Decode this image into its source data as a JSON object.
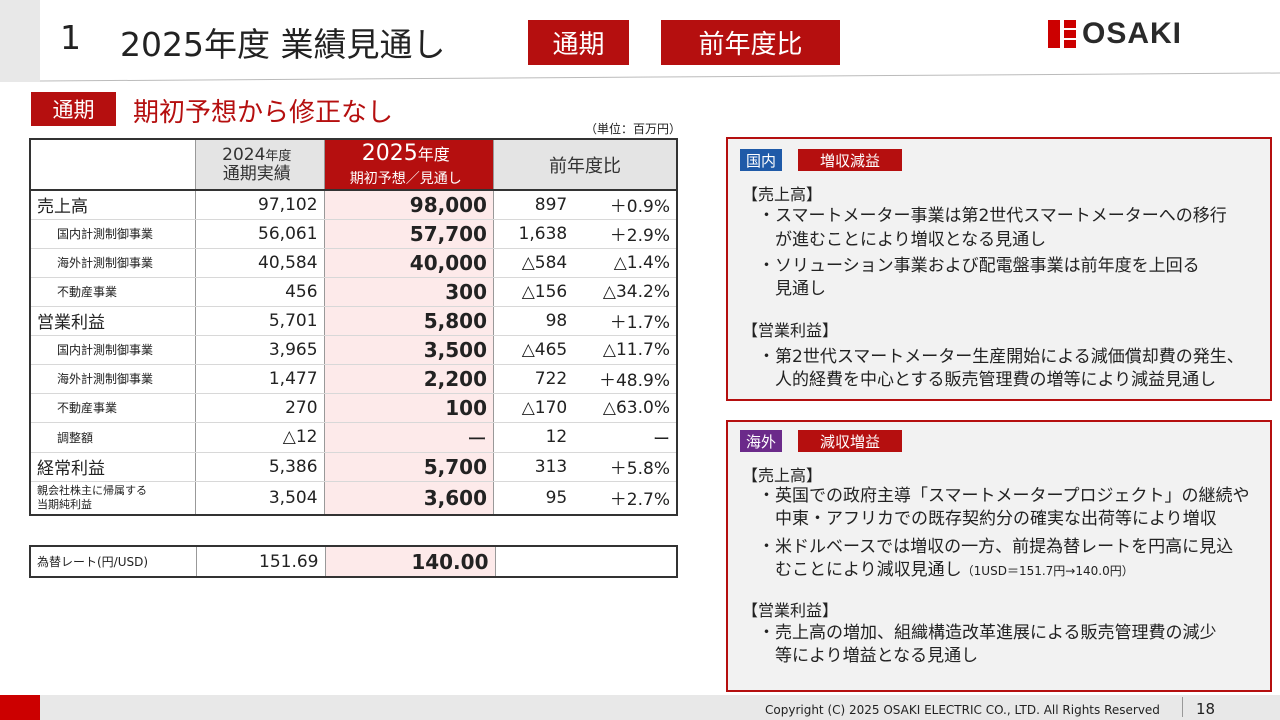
{
  "header": {
    "number": "1",
    "title": "2025年度 業績見通し",
    "badge1": "通期",
    "badge2": "前年度比",
    "logo_text": "OSAKI"
  },
  "section": {
    "badge": "通期",
    "title": "期初予想から修正なし",
    "unit": "（単位：百万円）"
  },
  "table": {
    "col1_line1": "2024",
    "col1_line1b": "年度",
    "col1_line2": "通期実績",
    "col2_line1": "2025",
    "col2_line1b": "年度",
    "col2_line2": "期初予想／見通し",
    "col3": "前年度比",
    "rows": [
      {
        "label": "売上高",
        "v2024": "97,102",
        "v2025": "98,000",
        "diff": "897",
        "pct": "＋0.9%"
      },
      {
        "label": "国内計測制御事業",
        "v2024": "56,061",
        "v2025": "57,700",
        "diff": "1,638",
        "pct": "＋2.9%"
      },
      {
        "label": "海外計測制御事業",
        "v2024": "40,584",
        "v2025": "40,000",
        "diff": "△584",
        "pct": "△1.4%"
      },
      {
        "label": "不動産事業",
        "v2024": "456",
        "v2025": "300",
        "diff": "△156",
        "pct": "△34.2%"
      },
      {
        "label": "営業利益",
        "v2024": "5,701",
        "v2025": "5,800",
        "diff": "98",
        "pct": "＋1.7%"
      },
      {
        "label": "国内計測制御事業",
        "v2024": "3,965",
        "v2025": "3,500",
        "diff": "△465",
        "pct": "△11.7%"
      },
      {
        "label": "海外計測制御事業",
        "v2024": "1,477",
        "v2025": "2,200",
        "diff": "722",
        "pct": "＋48.9%"
      },
      {
        "label": "不動産事業",
        "v2024": "270",
        "v2025": "100",
        "diff": "△170",
        "pct": "△63.0%"
      },
      {
        "label": "調整額",
        "v2024": "△12",
        "v2025": "ー",
        "diff": "12",
        "pct": "ー"
      },
      {
        "label": "経常利益",
        "v2024": "5,386",
        "v2025": "5,700",
        "diff": "313",
        "pct": "＋5.8%"
      },
      {
        "label_line1": "親会社株主に帰属する",
        "label_line2": "当期純利益",
        "v2024": "3,504",
        "v2025": "3,600",
        "diff": "95",
        "pct": "＋2.7%"
      }
    ],
    "fx": {
      "label": "為替レート(円/USD)",
      "v2024": "151.69",
      "v2025": "140.00"
    }
  },
  "domestic": {
    "tag": "国内",
    "headline": "増収減益",
    "sales_heading": "【売上高】",
    "sales_b1_l1": "・スマートメーター事業は第2世代スマートメーターへの移行",
    "sales_b1_l2": "が進むことにより増収となる見通し",
    "sales_b2_l1": "・ソリューション事業および配電盤事業は前年度を上回る",
    "sales_b2_l2": "見通し",
    "op_heading": "【営業利益】",
    "op_b1_l1": "・第2世代スマートメーター生産開始による減価償却費の発生、",
    "op_b1_l2": "人的経費を中心とする販売管理費の増等により減益見通し"
  },
  "overseas": {
    "tag": "海外",
    "headline": "減収増益",
    "sales_heading": "【売上高】",
    "sales_b1_l1": "・英国での政府主導「スマートメータープロジェクト」の継続や",
    "sales_b1_l2": "中東・アフリカでの既存契約分の確実な出荷等により増収",
    "sales_b2_l1": "・米ドルベースでは増収の一方、前提為替レートを円高に見込",
    "sales_b2_l2": "むことにより減収見通し",
    "sales_b2_note": "（1USD＝151.7円→140.0円）",
    "op_heading": "【営業利益】",
    "op_b1_l1": "・売上高の増加、組織構造改革進展による販売管理費の減少",
    "op_b1_l2": "等により増益となる見通し"
  },
  "footer": {
    "copyright": "Copyright (C) 2025 OSAKI ELECTRIC CO., LTD. All Rights Reserved",
    "page": "18"
  },
  "colors": {
    "brand_red": "#b50f0f",
    "domestic_tag": "#1f5aa8",
    "overseas_tag": "#6b2a8a"
  }
}
